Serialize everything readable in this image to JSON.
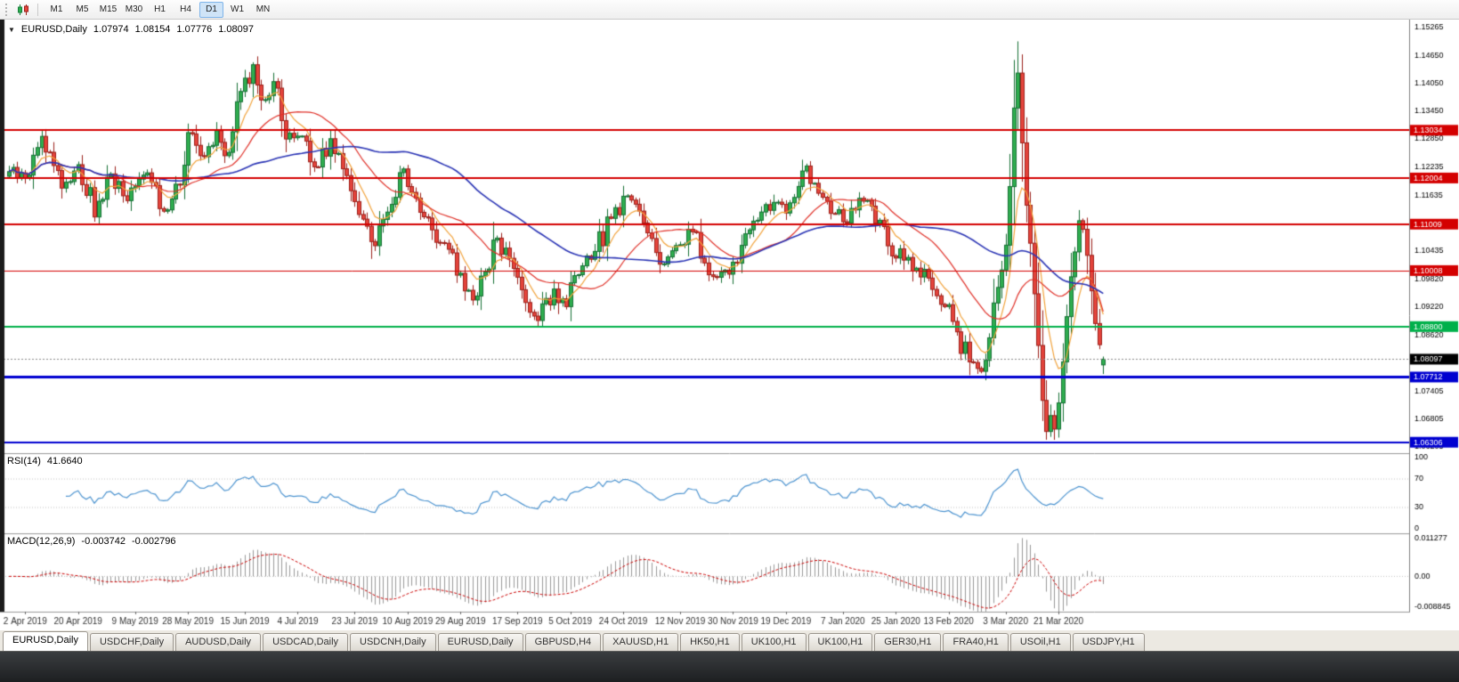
{
  "toolbar": {
    "timeframes": [
      "M1",
      "M5",
      "M15",
      "M30",
      "H1",
      "H4",
      "D1",
      "W1",
      "MN"
    ],
    "active_timeframe": "D1"
  },
  "chart": {
    "header": {
      "symbol": "EURUSD,Daily",
      "open": "1.07974",
      "high": "1.08154",
      "low": "1.07776",
      "close": "1.08097"
    }
  },
  "rsi": {
    "label": "RSI(14)",
    "value_label": "41.6640",
    "period": 14,
    "color": "#4d94d0",
    "levels": [
      70,
      30
    ],
    "axis": [
      {
        "label": "100",
        "value": 100
      },
      {
        "label": "70",
        "value": 70
      },
      {
        "label": "30",
        "value": 30
      },
      {
        "label": "0",
        "value": 0
      }
    ]
  },
  "macd": {
    "label": "MACD(12,26,9)",
    "value1": "-0.003742",
    "value2": "-0.002796",
    "fast": 12,
    "slow": 26,
    "signal": 9,
    "histogram_color": "#999999",
    "signal_color": "#cc0000",
    "display_max": 0.011277,
    "pane_max": 0.0127,
    "pane_min": -0.0104,
    "axis": [
      {
        "label": "0.011277",
        "value": 0.011277
      },
      {
        "label": "0.00",
        "value": 0
      },
      {
        "label": "-0.008845",
        "value": -0.008845
      }
    ]
  },
  "price_axis_ticks": [
    {
      "label": "1.15265",
      "value": 1.15265
    },
    {
      "label": "1.14650",
      "value": 1.1465
    },
    {
      "label": "1.14050",
      "value": 1.1405
    },
    {
      "label": "1.13450",
      "value": 1.1345
    },
    {
      "label": "1.12850",
      "value": 1.1285
    },
    {
      "label": "1.12235",
      "value": 1.12235
    },
    {
      "label": "1.11635",
      "value": 1.11635
    },
    {
      "label": "1.10435",
      "value": 1.10435
    },
    {
      "label": "1.09820",
      "value": 1.0982
    },
    {
      "label": "1.09220",
      "value": 1.0922
    },
    {
      "label": "1.08620",
      "value": 1.0862
    },
    {
      "label": "1.07405",
      "value": 1.07405
    },
    {
      "label": "1.06805",
      "value": 1.06805
    },
    {
      "label": "1.06205",
      "value": 1.06205
    }
  ],
  "hlines": [
    {
      "price": 1.13034,
      "label": "1.13034",
      "color": "#d40000",
      "width": 2
    },
    {
      "price": 1.12004,
      "label": "1.12004",
      "color": "#d40000",
      "width": 2
    },
    {
      "price": 1.11009,
      "label": "1.11009",
      "color": "#d40000",
      "width": 2
    },
    {
      "price": 1.10008,
      "label": "1.10008",
      "color": "#d40000",
      "width": 1
    },
    {
      "price": 1.088,
      "label": "1.08800",
      "color": "#00b04a",
      "width": 2
    },
    {
      "price": 1.07712,
      "label": "1.07712",
      "color": "#0000d0",
      "width": 3
    },
    {
      "price": 1.06306,
      "label": "1.06306",
      "color": "#0000d0",
      "width": 2
    }
  ],
  "current_price": {
    "value": 1.08097,
    "label": "1.08097",
    "tag_color": "#000000"
  },
  "dates": [
    {
      "label": "2 Apr 2019",
      "i": 4
    },
    {
      "label": "20 Apr 2019",
      "i": 17
    },
    {
      "label": "9 May 2019",
      "i": 31
    },
    {
      "label": "28 May 2019",
      "i": 44
    },
    {
      "label": "15 Jun 2019",
      "i": 58
    },
    {
      "label": "4 Jul 2019",
      "i": 71
    },
    {
      "label": "23 Jul 2019",
      "i": 85
    },
    {
      "label": "10 Aug 2019",
      "i": 98
    },
    {
      "label": "29 Aug 2019",
      "i": 111
    },
    {
      "label": "17 Sep 2019",
      "i": 125
    },
    {
      "label": "5 Oct 2019",
      "i": 138
    },
    {
      "label": "24 Oct 2019",
      "i": 151
    },
    {
      "label": "12 Nov 2019",
      "i": 165
    },
    {
      "label": "30 Nov 2019",
      "i": 178
    },
    {
      "label": "19 Dec 2019",
      "i": 191
    },
    {
      "label": "7 Jan 2020",
      "i": 205
    },
    {
      "label": "25 Jan 2020",
      "i": 218
    },
    {
      "label": "13 Feb 2020",
      "i": 231
    },
    {
      "label": "3 Mar 2020",
      "i": 245
    },
    {
      "label": "21 Mar 2020",
      "i": 258
    }
  ],
  "chart_data": {
    "type": "candlestick",
    "symbol": "EURUSD",
    "timeframe": "Daily",
    "title": "EURUSD,Daily",
    "ylim": [
      1.0607,
      1.1542
    ],
    "candle_count": 270,
    "last_close": 1.08097,
    "colors": {
      "up_fill": "#2fae4f",
      "up_stroke": "#156f34",
      "down_fill": "#e5443c",
      "down_stroke": "#9c201a"
    },
    "price_path": [
      [
        0,
        1.1215
      ],
      [
        4,
        1.12
      ],
      [
        8,
        1.129
      ],
      [
        11,
        1.123
      ],
      [
        13,
        1.118
      ],
      [
        17,
        1.123
      ],
      [
        21,
        1.112
      ],
      [
        25,
        1.121
      ],
      [
        29,
        1.115
      ],
      [
        33,
        1.121
      ],
      [
        38,
        1.113
      ],
      [
        41,
        1.1185
      ],
      [
        45,
        1.13
      ],
      [
        47,
        1.125
      ],
      [
        51,
        1.1305
      ],
      [
        54,
        1.1255
      ],
      [
        57,
        1.139
      ],
      [
        60,
        1.144
      ],
      [
        62,
        1.137
      ],
      [
        65,
        1.1405
      ],
      [
        68,
        1.1285
      ],
      [
        72,
        1.1295
      ],
      [
        75,
        1.1225
      ],
      [
        79,
        1.1285
      ],
      [
        83,
        1.121
      ],
      [
        86,
        1.112
      ],
      [
        89,
        1.106
      ],
      [
        93,
        1.1125
      ],
      [
        96,
        1.1215
      ],
      [
        99,
        1.117
      ],
      [
        104,
        1.109
      ],
      [
        108,
        1.1045
      ],
      [
        110,
        1.099
      ],
      [
        114,
        1.094
      ],
      [
        117,
        1.0995
      ],
      [
        120,
        1.107
      ],
      [
        124,
        1.1005
      ],
      [
        127,
        1.0935
      ],
      [
        130,
        1.089
      ],
      [
        134,
        1.096
      ],
      [
        137,
        1.0925
      ],
      [
        140,
        1.099
      ],
      [
        144,
        1.104
      ],
      [
        148,
        1.1115
      ],
      [
        152,
        1.116
      ],
      [
        155,
        1.113
      ],
      [
        158,
        1.107
      ],
      [
        161,
        1.1015
      ],
      [
        164,
        1.1055
      ],
      [
        168,
        1.1085
      ],
      [
        171,
        1.1015
      ],
      [
        174,
        1.0985
      ],
      [
        178,
        1.1015
      ],
      [
        181,
        1.108
      ],
      [
        184,
        1.111
      ],
      [
        188,
        1.115
      ],
      [
        191,
        1.1125
      ],
      [
        194,
        1.1185
      ],
      [
        196,
        1.1225
      ],
      [
        200,
        1.116
      ],
      [
        203,
        1.1125
      ],
      [
        206,
        1.1105
      ],
      [
        210,
        1.115
      ],
      [
        213,
        1.1105
      ],
      [
        216,
        1.1055
      ],
      [
        220,
        1.1025
      ],
      [
        223,
        1.1005
      ],
      [
        226,
        1.0985
      ],
      [
        230,
        1.0925
      ],
      [
        233,
        1.0865
      ],
      [
        236,
        1.0805
      ],
      [
        238,
        1.079
      ],
      [
        241,
        1.0855
      ],
      [
        243,
        1.096
      ],
      [
        245,
        1.1055
      ],
      [
        246,
        1.118
      ],
      [
        247,
        1.135
      ],
      [
        248,
        1.143
      ],
      [
        249,
        1.128
      ],
      [
        250,
        1.114
      ],
      [
        251,
        1.106
      ],
      [
        252,
        1.095
      ],
      [
        253,
        1.084
      ],
      [
        254,
        1.072
      ],
      [
        255,
        1.0655
      ],
      [
        256,
        1.0685
      ],
      [
        257,
        1.066
      ],
      [
        258,
        1.0715
      ],
      [
        259,
        1.08
      ],
      [
        260,
        1.09
      ],
      [
        261,
        1.099
      ],
      [
        262,
        1.104
      ],
      [
        263,
        1.111
      ],
      [
        264,
        1.109
      ],
      [
        265,
        1.103
      ],
      [
        266,
        1.096
      ],
      [
        267,
        1.089
      ],
      [
        268,
        1.0845
      ],
      [
        269,
        1.08097
      ]
    ],
    "extremes": [
      {
        "i": 248,
        "h": 1.1495
      },
      {
        "i": 60,
        "h": 1.145
      },
      {
        "i": 255,
        "l": 1.0636
      },
      {
        "i": 238,
        "l": 1.0778
      },
      {
        "i": 130,
        "l": 1.0879
      },
      {
        "i": 89,
        "l": 1.1026
      },
      {
        "i": 21,
        "l": 1.1106
      },
      {
        "i": 114,
        "l": 1.0926
      },
      {
        "i": 269,
        "o": 1.07974,
        "h": 1.08154,
        "l": 1.07776,
        "c": 1.08097
      }
    ],
    "overlays": [
      {
        "name": "fast-ma",
        "type": "ema",
        "period": 8,
        "color": "#f2a33c",
        "width": 1.2
      },
      {
        "name": "mid-ma",
        "type": "sma",
        "period": 21,
        "color": "#e03028",
        "width": 1.2
      },
      {
        "name": "slow-ma",
        "type": "sma",
        "period": 55,
        "color": "#2b35b5",
        "width": 1.6
      }
    ]
  },
  "tabs": [
    {
      "label": "EURUSD,Daily",
      "active": true
    },
    {
      "label": "USDCHF,Daily"
    },
    {
      "label": "AUDUSD,Daily"
    },
    {
      "label": "USDCAD,Daily"
    },
    {
      "label": "USDCNH,Daily"
    },
    {
      "label": "EURUSD,Daily"
    },
    {
      "label": "GBPUSD,H4"
    },
    {
      "label": "XAUUSD,H1"
    },
    {
      "label": "HK50,H1"
    },
    {
      "label": "UK100,H1"
    },
    {
      "label": "UK100,H1"
    },
    {
      "label": "GER30,H1"
    },
    {
      "label": "FRA40,H1"
    },
    {
      "label": "USOil,H1"
    },
    {
      "label": "USDJPY,H1"
    }
  ]
}
